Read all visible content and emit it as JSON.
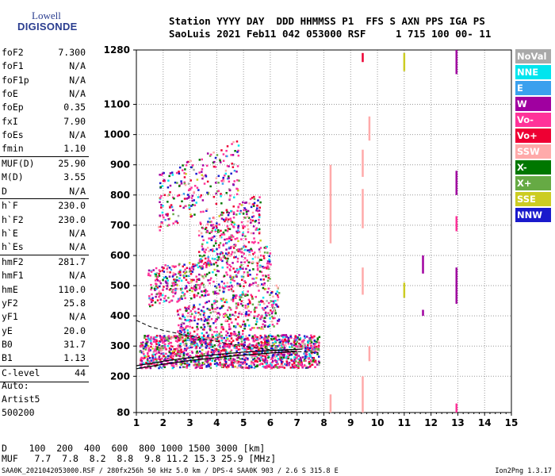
{
  "logo": {
    "line1": "Lowell",
    "line2": "DIGISONDE"
  },
  "header": {
    "line1": "Station YYYY DAY  DDD HHMMSS P1  FFS S AXN PPS IGA PS",
    "line2": "SaoLuis 2021 Feb11 042 053000 RSF     1 715 100 00- 11"
  },
  "params": {
    "group1": [
      {
        "label": "foF2",
        "value": "7.300"
      },
      {
        "label": "foF1",
        "value": "N/A"
      },
      {
        "label": "foF1p",
        "value": "N/A"
      },
      {
        "label": "foE",
        "value": "N/A"
      },
      {
        "label": "foEp",
        "value": "0.35"
      },
      {
        "label": "fxI",
        "value": "7.90"
      },
      {
        "label": "foEs",
        "value": "N/A"
      },
      {
        "label": "fmin",
        "value": "1.10"
      }
    ],
    "group2": [
      {
        "label": "MUF(D)",
        "value": "25.90"
      },
      {
        "label": "M(D)",
        "value": "3.55"
      },
      {
        "label": "D",
        "value": "N/A"
      }
    ],
    "group3": [
      {
        "label": "h`F",
        "value": "230.0"
      },
      {
        "label": "h`F2",
        "value": "230.0"
      },
      {
        "label": "h`E",
        "value": "N/A"
      },
      {
        "label": "h`Es",
        "value": "N/A"
      }
    ],
    "group4": [
      {
        "label": "hmF2",
        "value": "281.7"
      },
      {
        "label": "hmF1",
        "value": "N/A"
      },
      {
        "label": "hmE",
        "value": "110.0"
      },
      {
        "label": "yF2",
        "value": "25.8"
      },
      {
        "label": "yF1",
        "value": "N/A"
      },
      {
        "label": "yE",
        "value": "20.0"
      },
      {
        "label": "B0",
        "value": "31.7"
      },
      {
        "label": "B1",
        "value": "1.13"
      }
    ],
    "group5": [
      {
        "label": "C-level",
        "value": "44"
      }
    ]
  },
  "auto": {
    "line1": "Auto:",
    "line2": "Artist5",
    "line3": "500200"
  },
  "table": {
    "row1": "D    100  200  400  600  800 1000 1500 3000 [km]",
    "row2": "MUF   7.7  7.8  8.2  8.8  9.8 11.2 15.3 25.9 [MHz]"
  },
  "footer": {
    "left": "SAA0K_2021042053000.RSF / 280fx256h 50 kHz 5.0 km / DPS-4 SAA0K 903 / 2.6 S 315.8 E",
    "right": "Ion2Png 1.3.17"
  },
  "legend": [
    {
      "label": "NoVal",
      "color": "#a9a9a9"
    },
    {
      "label": "NNE",
      "color": "#00e5ee"
    },
    {
      "label": "E",
      "color": "#3aa0ee"
    },
    {
      "label": "W",
      "color": "#a000a0"
    },
    {
      "label": "Vo-",
      "color": "#ff3399"
    },
    {
      "label": "Vo+",
      "color": "#ee0033"
    },
    {
      "label": "SSW",
      "color": "#ffaaaa"
    },
    {
      "label": "X-",
      "color": "#007700"
    },
    {
      "label": "X+",
      "color": "#66aa44"
    },
    {
      "label": "SSE",
      "color": "#cccc22"
    },
    {
      "label": "NNW",
      "color": "#1a1acc"
    }
  ],
  "chart_data": {
    "type": "scatter",
    "xlim": [
      1,
      15
    ],
    "ylim": [
      80,
      1280
    ],
    "x_ticks": [
      "1",
      "2",
      "3",
      "4",
      "5",
      "6",
      "7",
      "8",
      "9",
      "10",
      "11",
      "12",
      "13",
      "14",
      "15"
    ],
    "y_ticks": [
      {
        "v": 80,
        "label": "80"
      },
      {
        "v": 200,
        "label": "200"
      },
      {
        "v": 300,
        "label": "300"
      },
      {
        "v": 400,
        "label": "400"
      },
      {
        "v": 500,
        "label": "500"
      },
      {
        "v": 600,
        "label": "600"
      },
      {
        "v": 700,
        "label": "700"
      },
      {
        "v": 800,
        "label": "800"
      },
      {
        "v": 900,
        "label": "900"
      },
      {
        "v": 1000,
        "label": "1000"
      },
      {
        "v": 1100,
        "label": "1100"
      },
      {
        "v": 1280,
        "label": "1280"
      }
    ],
    "grid": true,
    "clusters": [
      {
        "x": [
          1.1,
          7.8
        ],
        "y": [
          230,
          340
        ],
        "n": 1500
      },
      {
        "x": [
          2.5,
          6.3
        ],
        "y": [
          330,
          470
        ],
        "n": 450
      },
      {
        "x": [
          1.4,
          6.0
        ],
        "y": [
          470,
          600
        ],
        "n": 500
      },
      {
        "x": [
          3.3,
          5.6
        ],
        "y": [
          600,
          760
        ],
        "n": 280
      },
      {
        "x": [
          1.8,
          4.8
        ],
        "y": [
          740,
          930
        ],
        "n": 240
      }
    ],
    "trace_solid": [
      [
        1.0,
        235
      ],
      [
        2,
        250
      ],
      [
        3,
        262
      ],
      [
        4,
        272
      ],
      [
        5,
        280
      ],
      [
        6,
        285
      ],
      [
        7.2,
        290
      ]
    ],
    "trace_solid2": [
      [
        1.0,
        225
      ],
      [
        2,
        240
      ],
      [
        3,
        252
      ],
      [
        4,
        262
      ],
      [
        5,
        270
      ],
      [
        6,
        277
      ],
      [
        7.0,
        282
      ]
    ],
    "trace_dashed": [
      [
        1.0,
        385
      ],
      [
        1.5,
        365
      ],
      [
        2,
        352
      ],
      [
        3,
        333
      ],
      [
        4,
        315
      ],
      [
        5,
        300
      ],
      [
        6,
        288
      ],
      [
        7,
        282
      ],
      [
        7.8,
        278
      ]
    ],
    "vertical_streaks": [
      {
        "x": 8.25,
        "y": [
          640,
          900
        ],
        "color": "#ffaaaa"
      },
      {
        "x": 8.25,
        "y": [
          80,
          140
        ],
        "color": "#ffaaaa"
      },
      {
        "x": 9.45,
        "y": [
          80,
          200
        ],
        "color": "#ffaaaa"
      },
      {
        "x": 9.45,
        "y": [
          690,
          820
        ],
        "color": "#ffaaaa"
      },
      {
        "x": 9.45,
        "y": [
          860,
          950
        ],
        "color": "#ffaaaa"
      },
      {
        "x": 9.45,
        "y": [
          470,
          560
        ],
        "color": "#ffaaaa"
      },
      {
        "x": 9.45,
        "y": [
          1240,
          1270
        ],
        "color": "#ee0033"
      },
      {
        "x": 9.7,
        "y": [
          250,
          300
        ],
        "color": "#ffaaaa"
      },
      {
        "x": 9.7,
        "y": [
          980,
          1060
        ],
        "color": "#ffaaaa"
      },
      {
        "x": 11.0,
        "y": [
          1210,
          1270
        ],
        "color": "#cccc22"
      },
      {
        "x": 11.0,
        "y": [
          460,
          510
        ],
        "color": "#cccc22"
      },
      {
        "x": 11.7,
        "y": [
          540,
          600
        ],
        "color": "#a000a0"
      },
      {
        "x": 11.7,
        "y": [
          400,
          420
        ],
        "color": "#a000a0"
      },
      {
        "x": 12.95,
        "y": [
          1200,
          1280
        ],
        "color": "#a000a0"
      },
      {
        "x": 12.95,
        "y": [
          800,
          880
        ],
        "color": "#a000a0"
      },
      {
        "x": 12.95,
        "y": [
          680,
          730
        ],
        "color": "#ff3399"
      },
      {
        "x": 12.95,
        "y": [
          440,
          560
        ],
        "color": "#a000a0"
      },
      {
        "x": 12.95,
        "y": [
          80,
          110
        ],
        "color": "#ff3399"
      }
    ]
  }
}
